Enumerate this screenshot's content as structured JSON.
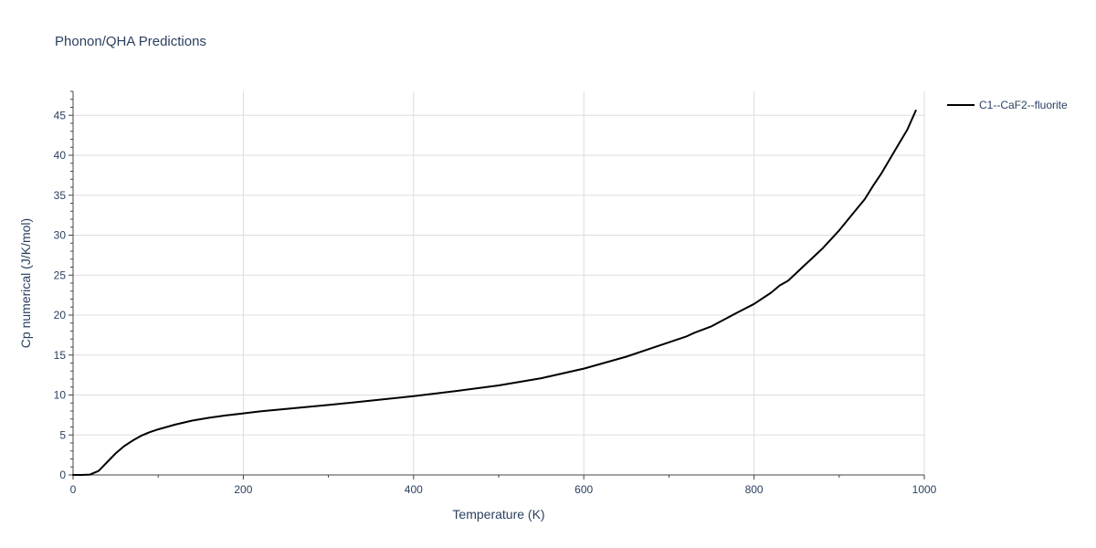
{
  "chart_data": {
    "type": "line",
    "title": "Phonon/QHA Predictions",
    "xlabel": "Temperature (K)",
    "ylabel": "Cp numerical (J/K/mol)",
    "xlim": [
      0,
      1000
    ],
    "ylim": [
      0,
      48
    ],
    "x_ticks": [
      0,
      200,
      400,
      600,
      800,
      1000
    ],
    "y_ticks": [
      0,
      5,
      10,
      15,
      20,
      25,
      30,
      35,
      40,
      45
    ],
    "grid": true,
    "legend_position": "top-right",
    "series": [
      {
        "name": "C1--CaF2--fluorite",
        "color": "#000000",
        "x": [
          0,
          10,
          20,
          30,
          40,
          50,
          60,
          70,
          80,
          90,
          100,
          120,
          140,
          160,
          180,
          200,
          220,
          250,
          300,
          350,
          400,
          450,
          500,
          550,
          600,
          650,
          700,
          720,
          730,
          750,
          780,
          800,
          820,
          830,
          840,
          860,
          880,
          900,
          920,
          930,
          940,
          950,
          960,
          970,
          980,
          990
        ],
        "y": [
          0,
          0,
          0.05,
          0.5,
          1.6,
          2.7,
          3.6,
          4.3,
          4.9,
          5.35,
          5.7,
          6.3,
          6.8,
          7.15,
          7.45,
          7.7,
          7.95,
          8.25,
          8.75,
          9.3,
          9.85,
          10.5,
          11.2,
          12.1,
          13.3,
          14.8,
          16.6,
          17.3,
          17.8,
          18.6,
          20.3,
          21.4,
          22.8,
          23.7,
          24.3,
          26.3,
          28.3,
          30.6,
          33.2,
          34.5,
          36.2,
          37.8,
          39.6,
          41.4,
          43.2,
          45.6
        ]
      }
    ]
  }
}
